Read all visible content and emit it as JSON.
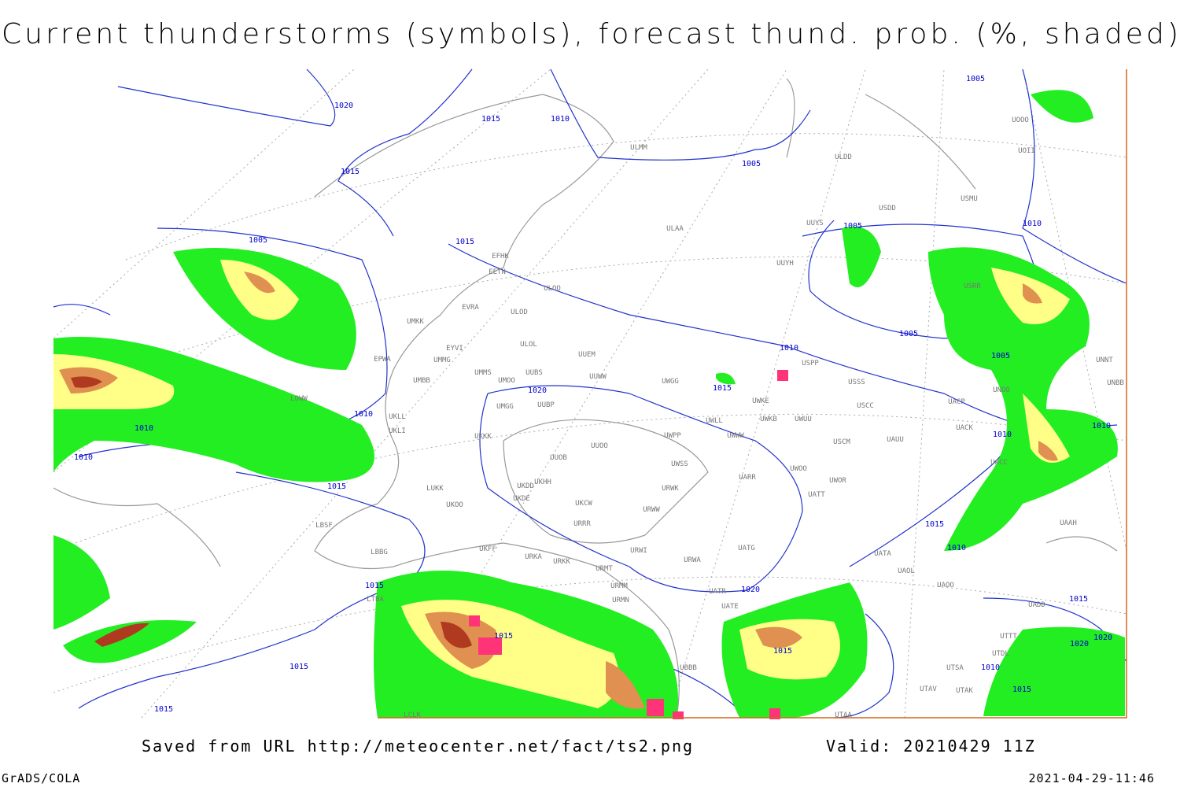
{
  "header": {
    "title": "Current thunderstorms (symbols), forecast thund. prob. (%, shaded)"
  },
  "map": {
    "isobar_labels": [
      1020,
      1015,
      1010,
      1015,
      1005,
      1005,
      1005,
      1015,
      1005,
      1010,
      1005,
      1010,
      1015,
      1020,
      1005,
      1010,
      1010,
      1010,
      1015,
      1010,
      1010,
      1015,
      1010,
      1015,
      1020,
      1015,
      1015,
      1015,
      1020,
      1020,
      1010,
      1015,
      1015,
      1015
    ],
    "station_labels": [
      "ULMM",
      "ULDD",
      "USDD",
      "USMU",
      "UOII",
      "UOOO",
      "ULAA",
      "UUYS",
      "UUYH",
      "USRR",
      "EFHK",
      "EETN",
      "ULOO",
      "EVRA",
      "ULOD",
      "UMKK",
      "ULOL",
      "UUEM",
      "EYVI",
      "UMMG",
      "EPWA",
      "UMMS",
      "UMOO",
      "UUBS",
      "UUWW",
      "UWGG",
      "UMBB",
      "LOWW",
      "UKLL",
      "UKLI",
      "UMGG",
      "UUBP",
      "UWKE",
      "UWLL",
      "UWWW",
      "UWKB",
      "UWUU",
      "USSS",
      "USPP",
      "USCC",
      "USCM",
      "UAUU",
      "UWPP",
      "UUOO",
      "UKKK",
      "UUOB",
      "UWSS",
      "UARR",
      "UWOO",
      "UWOR",
      "UATT",
      "LUKK",
      "UKHH",
      "UKDD",
      "UKDE",
      "UKOO",
      "UKCW",
      "URWW",
      "URRR",
      "URWK",
      "LBSF",
      "LBBG",
      "UKFF",
      "URKA",
      "URKK",
      "URWI",
      "UATG",
      "URWA",
      "UATA",
      "UAOL",
      "UAOO",
      "URMT",
      "URMN",
      "UATR",
      "UATE",
      "URMM",
      "UBBB",
      "UTAA",
      "UTAV",
      "UTAK",
      "UTSA",
      "UTDL",
      "UTTT",
      "UAAH",
      "UADD",
      "UACC",
      "UACK",
      "UACP",
      "UNOO",
      "UNNT",
      "UNBB",
      "LTBA",
      "LCLK"
    ]
  },
  "footer": {
    "source": "Saved from URL http://meteocenter.net/fact/ts2.png",
    "valid": "Valid: 20210429 11Z",
    "credit": "GrADS/COLA",
    "timestamp": "2021-04-29-11:46"
  }
}
